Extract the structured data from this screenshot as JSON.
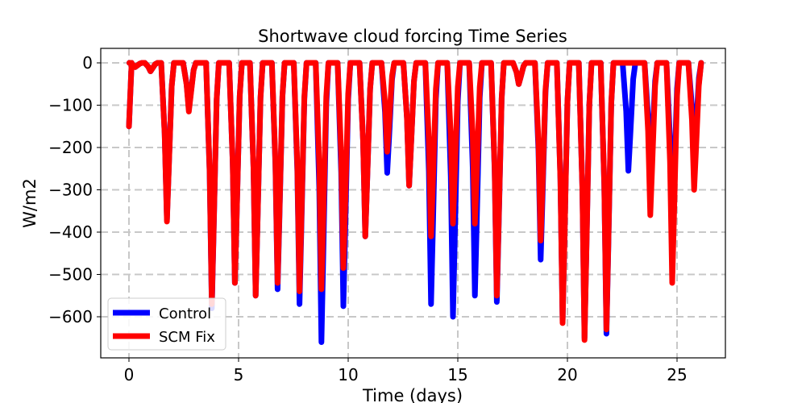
{
  "chart_data": {
    "type": "line",
    "title": "Shortwave cloud forcing Time Series",
    "xlabel": "Time (days)",
    "ylabel": "W/m2",
    "xlim": [
      -1.3,
      27.2
    ],
    "ylim": [
      -700,
      30
    ],
    "xticks": [
      0,
      5,
      10,
      15,
      20,
      25
    ],
    "yticks": [
      0,
      -100,
      -200,
      -300,
      -400,
      -500,
      -600
    ],
    "ytick_labels": [
      "0",
      "−100",
      "−200",
      "−300",
      "−400",
      "−500",
      "−600"
    ],
    "xtick_labels": [
      "0",
      "5",
      "10",
      "15",
      "20",
      "25"
    ],
    "grid": true,
    "grid_style": "dashed",
    "legend_position": "lower left",
    "legend": [
      "Control",
      "SCM Fix"
    ],
    "series": [
      {
        "name": "Control",
        "color": "#0000ff",
        "troughs": [
          {
            "day": 0.0,
            "min": -150
          },
          {
            "day": 0.3,
            "min": -10
          },
          {
            "day": 1.0,
            "min": -20
          },
          {
            "day": 1.75,
            "min": -370
          },
          {
            "day": 2.75,
            "min": -110
          },
          {
            "day": 3.8,
            "min": -580
          },
          {
            "day": 4.85,
            "min": -520
          },
          {
            "day": 5.8,
            "min": -550
          },
          {
            "day": 6.8,
            "min": -535
          },
          {
            "day": 7.8,
            "min": -570
          },
          {
            "day": 8.8,
            "min": -660
          },
          {
            "day": 9.8,
            "min": -575
          },
          {
            "day": 10.8,
            "min": -410
          },
          {
            "day": 11.8,
            "min": -260
          },
          {
            "day": 12.8,
            "min": -290
          },
          {
            "day": 13.8,
            "min": -570
          },
          {
            "day": 14.8,
            "min": -600
          },
          {
            "day": 15.8,
            "min": -550
          },
          {
            "day": 16.8,
            "min": -565
          },
          {
            "day": 17.8,
            "min": -50
          },
          {
            "day": 18.8,
            "min": -465
          },
          {
            "day": 19.8,
            "min": -610
          },
          {
            "day": 20.8,
            "min": -650
          },
          {
            "day": 21.8,
            "min": -640
          },
          {
            "day": 22.8,
            "min": -255
          },
          {
            "day": 23.8,
            "min": -285
          },
          {
            "day": 24.8,
            "min": -405
          },
          {
            "day": 25.8,
            "min": -230
          }
        ],
        "end_value": -55
      },
      {
        "name": "SCM Fix",
        "color": "#ff0000",
        "troughs": [
          {
            "day": 0.0,
            "min": -150
          },
          {
            "day": 0.3,
            "min": -10
          },
          {
            "day": 1.0,
            "min": -20
          },
          {
            "day": 1.75,
            "min": -375
          },
          {
            "day": 2.75,
            "min": -115
          },
          {
            "day": 3.8,
            "min": -570
          },
          {
            "day": 4.85,
            "min": -520
          },
          {
            "day": 5.8,
            "min": -550
          },
          {
            "day": 6.8,
            "min": -520
          },
          {
            "day": 7.8,
            "min": -540
          },
          {
            "day": 8.8,
            "min": -535
          },
          {
            "day": 9.8,
            "min": -485
          },
          {
            "day": 10.8,
            "min": -410
          },
          {
            "day": 11.8,
            "min": -210
          },
          {
            "day": 12.8,
            "min": -290
          },
          {
            "day": 13.8,
            "min": -410
          },
          {
            "day": 14.8,
            "min": -380
          },
          {
            "day": 15.8,
            "min": -380
          },
          {
            "day": 16.8,
            "min": -550
          },
          {
            "day": 17.8,
            "min": -50
          },
          {
            "day": 18.8,
            "min": -420
          },
          {
            "day": 19.8,
            "min": -615
          },
          {
            "day": 20.8,
            "min": -655
          },
          {
            "day": 21.8,
            "min": -630
          },
          {
            "day": 22.8,
            "min": 0
          },
          {
            "day": 23.8,
            "min": -360
          },
          {
            "day": 24.8,
            "min": -520
          },
          {
            "day": 25.8,
            "min": -300
          }
        ],
        "end_value": -60
      }
    ]
  }
}
